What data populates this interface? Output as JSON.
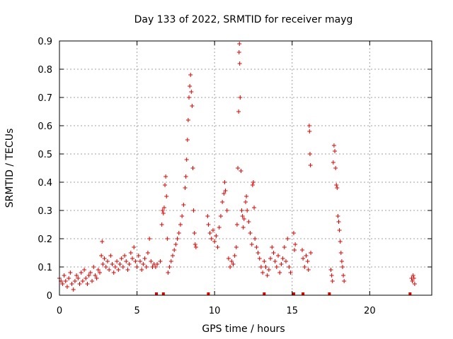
{
  "chart_data": {
    "type": "scatter",
    "title": "Day 133 of 2022, SRMTID for receiver mayg",
    "xlabel": "GPS time / hours",
    "ylabel": "SRMTID / TECUs",
    "xlim": [
      0,
      24
    ],
    "ylim": [
      0,
      0.9
    ],
    "grid": true,
    "legend": "none",
    "xticks": [
      0,
      5,
      10,
      15,
      20
    ],
    "xtick_labels": [
      "0",
      "5",
      "10",
      "15",
      "20"
    ],
    "yticks": [
      0,
      0.1,
      0.2,
      0.3,
      0.4,
      0.5,
      0.6,
      0.7,
      0.8,
      0.9
    ],
    "ytick_labels": [
      "0",
      "0.1",
      "0.2",
      "0.3",
      "0.4",
      "0.5",
      "0.6",
      "0.7",
      "0.8",
      "0.9"
    ],
    "marker": "+",
    "color": "#e00000",
    "series": [
      {
        "name": "SRMTID",
        "points": [
          [
            0.0,
            0.06
          ],
          [
            0.1,
            0.05
          ],
          [
            0.2,
            0.04
          ],
          [
            0.3,
            0.07
          ],
          [
            0.4,
            0.05
          ],
          [
            0.5,
            0.03
          ],
          [
            0.6,
            0.06
          ],
          [
            0.7,
            0.08
          ],
          [
            0.8,
            0.04
          ],
          [
            0.9,
            0.02
          ],
          [
            1.0,
            0.05
          ],
          [
            1.1,
            0.07
          ],
          [
            1.2,
            0.06
          ],
          [
            1.3,
            0.04
          ],
          [
            1.4,
            0.08
          ],
          [
            1.5,
            0.05
          ],
          [
            1.6,
            0.09
          ],
          [
            1.7,
            0.06
          ],
          [
            1.8,
            0.04
          ],
          [
            1.9,
            0.07
          ],
          [
            2.0,
            0.08
          ],
          [
            2.1,
            0.05
          ],
          [
            2.2,
            0.1
          ],
          [
            2.3,
            0.07
          ],
          [
            2.4,
            0.06
          ],
          [
            2.5,
            0.09
          ],
          [
            2.6,
            0.08
          ],
          [
            2.7,
            0.14
          ],
          [
            2.75,
            0.19
          ],
          [
            2.8,
            0.11
          ],
          [
            2.9,
            0.13
          ],
          [
            3.0,
            0.1
          ],
          [
            3.1,
            0.12
          ],
          [
            3.2,
            0.09
          ],
          [
            3.3,
            0.14
          ],
          [
            3.4,
            0.11
          ],
          [
            3.5,
            0.08
          ],
          [
            3.6,
            0.1
          ],
          [
            3.7,
            0.12
          ],
          [
            3.8,
            0.09
          ],
          [
            3.9,
            0.11
          ],
          [
            4.0,
            0.13
          ],
          [
            4.1,
            0.1
          ],
          [
            4.2,
            0.14
          ],
          [
            4.3,
            0.12
          ],
          [
            4.4,
            0.09
          ],
          [
            4.5,
            0.11
          ],
          [
            4.6,
            0.15
          ],
          [
            4.7,
            0.13
          ],
          [
            4.8,
            0.17
          ],
          [
            4.9,
            0.12
          ],
          [
            5.0,
            0.1
          ],
          [
            5.1,
            0.14
          ],
          [
            5.2,
            0.12
          ],
          [
            5.3,
            0.09
          ],
          [
            5.4,
            0.11
          ],
          [
            5.5,
            0.13
          ],
          [
            5.6,
            0.1
          ],
          [
            5.7,
            0.15
          ],
          [
            5.8,
            0.2
          ],
          [
            5.9,
            0.12
          ],
          [
            6.0,
            0.1
          ],
          [
            6.1,
            0.11
          ],
          [
            6.2,
            0.1
          ],
          [
            6.3,
            0.11
          ],
          [
            6.5,
            0.12
          ],
          [
            6.6,
            0.25
          ],
          [
            6.65,
            0.3
          ],
          [
            6.7,
            0.29
          ],
          [
            6.75,
            0.31
          ],
          [
            6.8,
            0.39
          ],
          [
            6.85,
            0.42
          ],
          [
            6.9,
            0.35
          ],
          [
            6.95,
            0.2
          ],
          [
            7.0,
            0.08
          ],
          [
            7.1,
            0.1
          ],
          [
            7.2,
            0.12
          ],
          [
            7.3,
            0.14
          ],
          [
            7.4,
            0.16
          ],
          [
            7.5,
            0.18
          ],
          [
            7.6,
            0.2
          ],
          [
            7.7,
            0.22
          ],
          [
            7.8,
            0.25
          ],
          [
            7.9,
            0.28
          ],
          [
            8.0,
            0.32
          ],
          [
            8.1,
            0.38
          ],
          [
            8.15,
            0.42
          ],
          [
            8.2,
            0.48
          ],
          [
            8.25,
            0.55
          ],
          [
            8.3,
            0.62
          ],
          [
            8.35,
            0.7
          ],
          [
            8.4,
            0.74
          ],
          [
            8.45,
            0.78
          ],
          [
            8.5,
            0.72
          ],
          [
            8.55,
            0.67
          ],
          [
            8.6,
            0.45
          ],
          [
            8.65,
            0.3
          ],
          [
            8.7,
            0.22
          ],
          [
            8.75,
            0.18
          ],
          [
            8.8,
            0.17
          ],
          [
            9.55,
            0.28
          ],
          [
            9.6,
            0.25
          ],
          [
            9.7,
            0.22
          ],
          [
            9.8,
            0.2
          ],
          [
            9.9,
            0.23
          ],
          [
            10.0,
            0.19
          ],
          [
            10.1,
            0.21
          ],
          [
            10.2,
            0.17
          ],
          [
            10.3,
            0.24
          ],
          [
            10.4,
            0.28
          ],
          [
            10.5,
            0.33
          ],
          [
            10.6,
            0.36
          ],
          [
            10.65,
            0.4
          ],
          [
            10.7,
            0.37
          ],
          [
            10.8,
            0.3
          ],
          [
            10.9,
            0.13
          ],
          [
            11.0,
            0.1
          ],
          [
            11.1,
            0.12
          ],
          [
            11.2,
            0.11
          ],
          [
            11.3,
            0.14
          ],
          [
            11.4,
            0.17
          ],
          [
            11.45,
            0.25
          ],
          [
            11.5,
            0.45
          ],
          [
            11.55,
            0.65
          ],
          [
            11.58,
            0.86
          ],
          [
            11.6,
            0.89
          ],
          [
            11.62,
            0.82
          ],
          [
            11.65,
            0.7
          ],
          [
            11.7,
            0.44
          ],
          [
            11.75,
            0.3
          ],
          [
            11.8,
            0.28
          ],
          [
            11.85,
            0.24
          ],
          [
            11.9,
            0.27
          ],
          [
            12.0,
            0.33
          ],
          [
            12.05,
            0.35
          ],
          [
            12.1,
            0.3
          ],
          [
            12.2,
            0.26
          ],
          [
            12.3,
            0.22
          ],
          [
            12.4,
            0.18
          ],
          [
            12.45,
            0.39
          ],
          [
            12.5,
            0.4
          ],
          [
            12.55,
            0.31
          ],
          [
            12.6,
            0.2
          ],
          [
            12.7,
            0.17
          ],
          [
            12.8,
            0.15
          ],
          [
            12.9,
            0.13
          ],
          [
            13.0,
            0.1
          ],
          [
            13.1,
            0.08
          ],
          [
            13.2,
            0.12
          ],
          [
            13.3,
            0.1
          ],
          [
            13.4,
            0.07
          ],
          [
            13.5,
            0.09
          ],
          [
            13.6,
            0.13
          ],
          [
            13.7,
            0.17
          ],
          [
            13.8,
            0.15
          ],
          [
            13.9,
            0.12
          ],
          [
            14.0,
            0.1
          ],
          [
            14.1,
            0.14
          ],
          [
            14.2,
            0.08
          ],
          [
            14.3,
            0.11
          ],
          [
            14.4,
            0.13
          ],
          [
            14.5,
            0.17
          ],
          [
            14.6,
            0.12
          ],
          [
            14.7,
            0.2
          ],
          [
            14.8,
            0.1
          ],
          [
            14.9,
            0.08
          ],
          [
            15.1,
            0.22
          ],
          [
            15.15,
            0.16
          ],
          [
            15.2,
            0.18
          ],
          [
            15.65,
            0.16
          ],
          [
            15.7,
            0.13
          ],
          [
            15.8,
            0.1
          ],
          [
            15.9,
            0.14
          ],
          [
            16.0,
            0.12
          ],
          [
            16.05,
            0.09
          ],
          [
            16.1,
            0.6
          ],
          [
            16.12,
            0.58
          ],
          [
            16.15,
            0.5
          ],
          [
            16.18,
            0.46
          ],
          [
            16.2,
            0.15
          ],
          [
            17.5,
            0.09
          ],
          [
            17.55,
            0.07
          ],
          [
            17.6,
            0.05
          ],
          [
            17.65,
            0.47
          ],
          [
            17.7,
            0.53
          ],
          [
            17.75,
            0.51
          ],
          [
            17.8,
            0.45
          ],
          [
            17.85,
            0.39
          ],
          [
            17.9,
            0.38
          ],
          [
            17.95,
            0.28
          ],
          [
            18.0,
            0.26
          ],
          [
            18.05,
            0.23
          ],
          [
            18.1,
            0.19
          ],
          [
            18.15,
            0.15
          ],
          [
            18.2,
            0.12
          ],
          [
            18.25,
            0.1
          ],
          [
            18.3,
            0.07
          ],
          [
            18.35,
            0.05
          ],
          [
            22.7,
            0.06
          ],
          [
            22.75,
            0.05
          ],
          [
            22.8,
            0.07
          ],
          [
            22.85,
            0.06
          ],
          [
            22.9,
            0.04
          ]
        ]
      }
    ],
    "gap_markers": [
      6.25,
      6.7,
      9.6,
      13.2,
      15.1,
      15.7,
      17.4,
      22.6
    ]
  }
}
